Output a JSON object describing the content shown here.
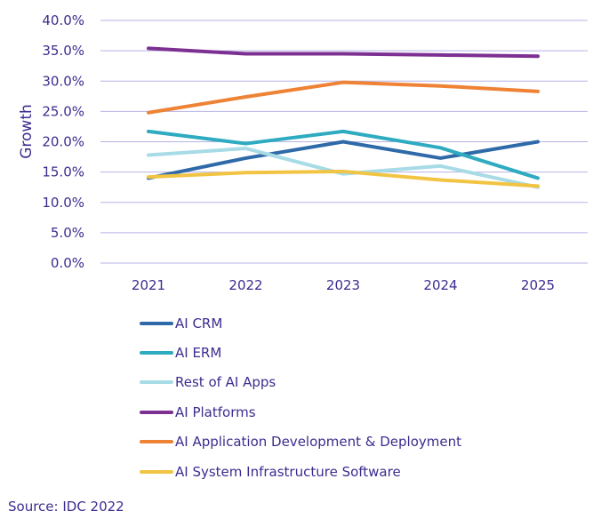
{
  "chart_data": {
    "type": "line",
    "categories": [
      "2021",
      "2022",
      "2023",
      "2024",
      "2025"
    ],
    "ylabel": "Growth",
    "ylim": [
      0,
      40
    ],
    "y_ticks": [
      "0.0%",
      "5.0%",
      "10.0%",
      "15.0%",
      "20.0%",
      "25.0%",
      "30.0%",
      "35.0%",
      "40.0%"
    ],
    "grid": "horizontal",
    "legend_position": "bottom",
    "series": [
      {
        "name": "AI CRM",
        "color": "#2f6aa8",
        "values": [
          14.0,
          17.3,
          20.0,
          17.3,
          20.0
        ]
      },
      {
        "name": "AI ERM",
        "color": "#2eabc0",
        "values": [
          21.7,
          19.7,
          21.7,
          19.0,
          14.0
        ]
      },
      {
        "name": "Rest of AI Apps",
        "color": "#a7dbe6",
        "values": [
          17.8,
          18.9,
          14.7,
          16.0,
          12.5
        ]
      },
      {
        "name": "AI Platforms",
        "color": "#7d3092",
        "values": [
          35.4,
          34.5,
          34.5,
          34.3,
          34.1
        ]
      },
      {
        "name": "AI Application Development & Deployment",
        "color": "#ee8235",
        "values": [
          24.8,
          27.4,
          29.8,
          29.2,
          28.3
        ]
      },
      {
        "name": "AI System Infrastructure Software",
        "color": "#f2c443",
        "values": [
          14.2,
          14.9,
          15.1,
          13.7,
          12.7
        ]
      }
    ]
  },
  "source": "Source: IDC 2022"
}
